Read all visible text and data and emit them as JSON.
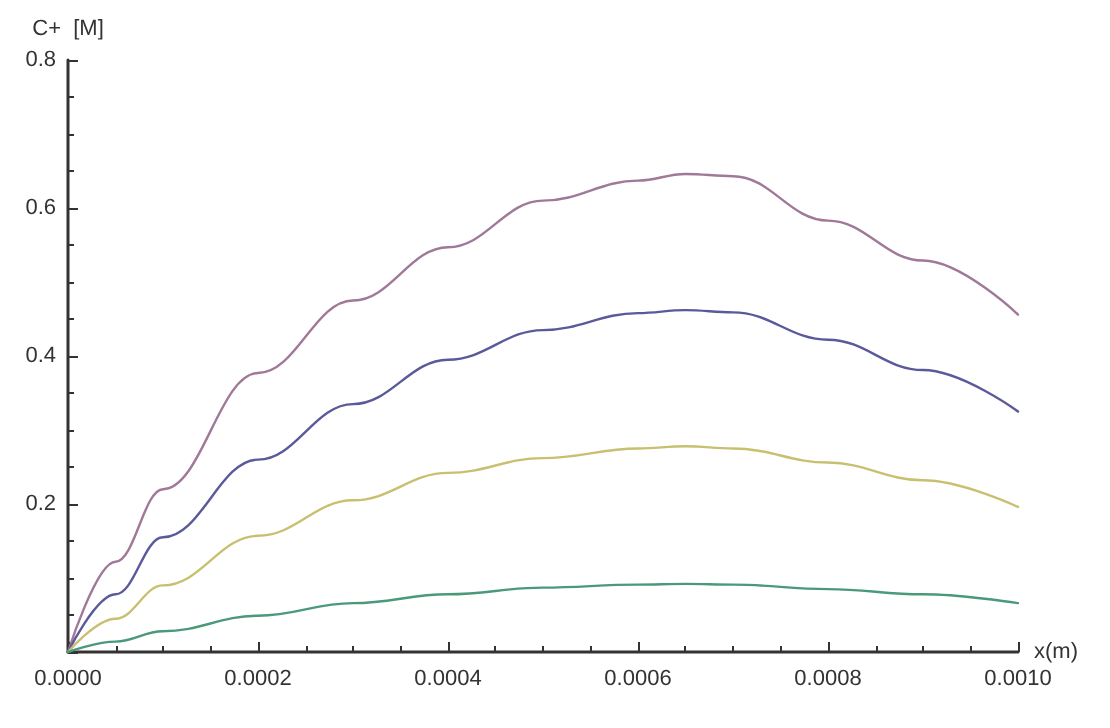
{
  "chart_data": {
    "type": "line",
    "xlabel": "x(m)",
    "ylabel": "C+  [M]",
    "x": [
      0,
      5e-05,
      0.0001,
      0.0002,
      0.0003,
      0.0004,
      0.0005,
      0.0006,
      0.00065,
      0.0007,
      0.0008,
      0.0009,
      0.001
    ],
    "series": [
      {
        "color": "#a07898",
        "values": [
          0,
          0.122,
          0.22,
          0.377,
          0.475,
          0.547,
          0.61,
          0.637,
          0.646,
          0.643,
          0.583,
          0.529,
          0.456
        ]
      },
      {
        "color": "#5a5a9a",
        "values": [
          0,
          0.078,
          0.155,
          0.26,
          0.335,
          0.395,
          0.435,
          0.458,
          0.462,
          0.459,
          0.422,
          0.381,
          0.325
        ]
      },
      {
        "color": "#c8c070",
        "values": [
          0,
          0.045,
          0.09,
          0.157,
          0.205,
          0.242,
          0.262,
          0.275,
          0.278,
          0.275,
          0.256,
          0.232,
          0.196
        ]
      },
      {
        "color": "#4a9a7a",
        "values": [
          0,
          0.014,
          0.028,
          0.049,
          0.066,
          0.078,
          0.087,
          0.091,
          0.092,
          0.091,
          0.085,
          0.078,
          0.066
        ]
      }
    ],
    "xlim": [
      0,
      0.001
    ],
    "xticks": [
      {
        "value": 0,
        "label": "0.0000"
      },
      {
        "value": 0.0002,
        "label": "0.0002"
      },
      {
        "value": 0.0004,
        "label": "0.0004"
      },
      {
        "value": 0.0006,
        "label": "0.0006"
      },
      {
        "value": 0.0008,
        "label": "0.0008"
      },
      {
        "value": 0.001,
        "label": "0.0010"
      }
    ],
    "ylim": [
      0,
      0.8
    ],
    "yticks": [
      {
        "value": 0,
        "label": null
      },
      0.2,
      0.4,
      0.6,
      0.8
    ],
    "grid": false,
    "marker": "none",
    "line_style": "solid"
  }
}
